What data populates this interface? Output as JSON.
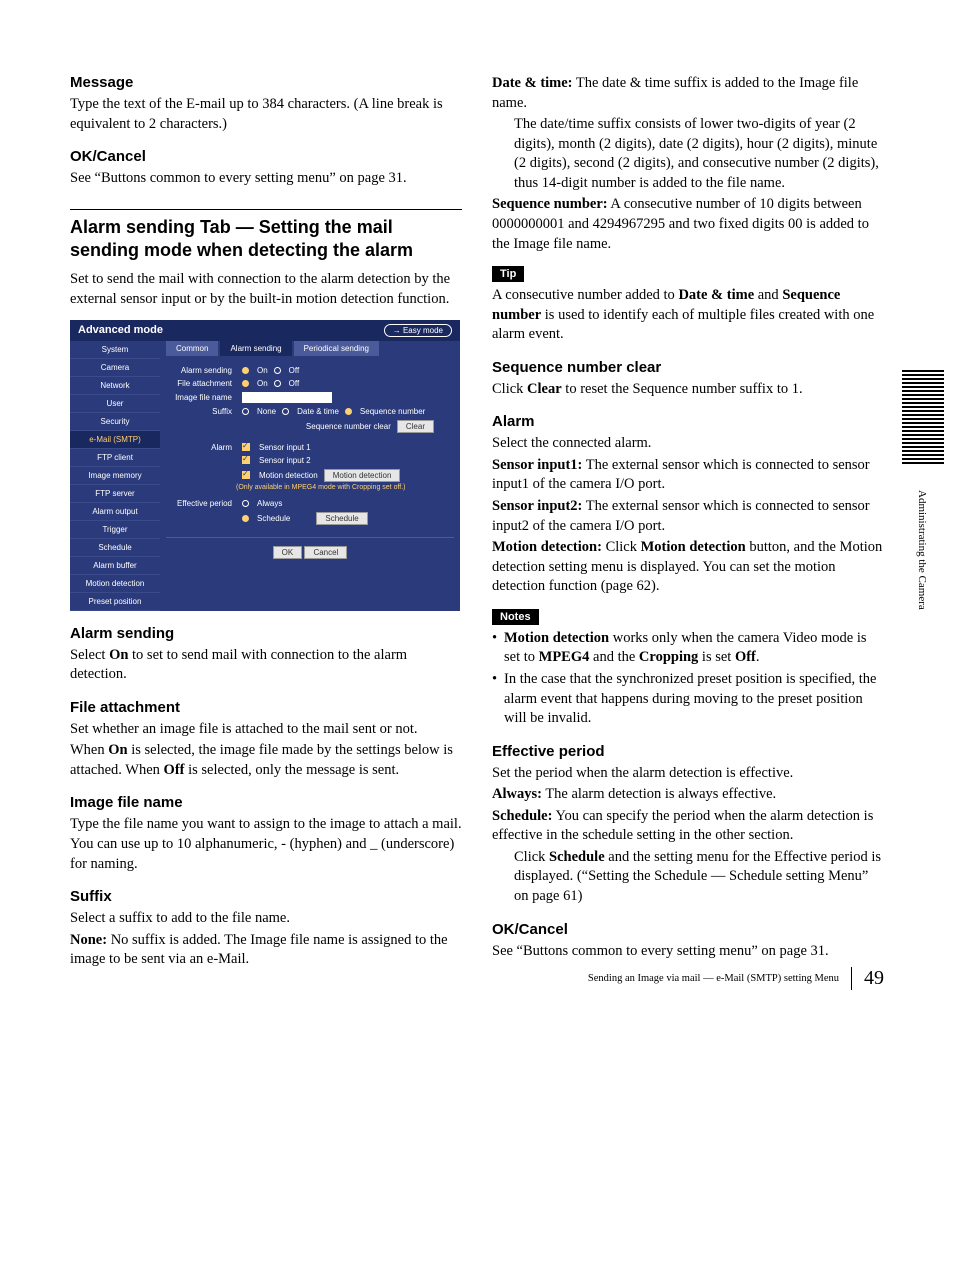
{
  "left": {
    "message": {
      "heading": "Message",
      "body": "Type the text of the E-mail up to 384 characters. (A line break is equivalent to 2 characters.)"
    },
    "okcancel1": {
      "heading": "OK/Cancel",
      "body": "See “Buttons common to every setting menu” on page 31."
    },
    "bigheading": "Alarm sending Tab — Setting the mail sending mode when detecting the alarm",
    "intro": "Set to send the mail with connection to the alarm detection by the external sensor input or by the built-in motion detection function.",
    "alarm_sending": {
      "heading": "Alarm sending",
      "p1a": "Select ",
      "p1b": "On",
      "p1c": " to set to send mail with connection to the alarm detection."
    },
    "file_attachment": {
      "heading": "File attachment",
      "p1": "Set whether an image file is attached to the mail sent or not.",
      "p2a": "When ",
      "p2b": "On",
      "p2c": " is selected, the image file made by the settings below is attached. When ",
      "p2d": "Off",
      "p2e": " is selected, only the message is sent."
    },
    "image_file_name": {
      "heading": "Image file name",
      "body": "Type the file name you want to assign to the image to attach a mail.  You can use up to 10 alphanumeric, - (hyphen) and _ (underscore) for naming."
    },
    "suffix": {
      "heading": "Suffix",
      "intro": "Select a suffix to add to the file name.",
      "none_term": "None:",
      "none_def": " No suffix is added.  The Image file name is assigned to the image to be sent via an e-Mail."
    }
  },
  "right": {
    "datetime_term": "Date & time:",
    "datetime_def": " The date & time suffix is added to the Image file name.",
    "datetime_more": "The date/time suffix consists of lower two-digits of year (2 digits), month (2 digits), date (2 digits), hour (2 digits), minute (2 digits), second (2 digits), and consecutive number (2 digits), thus 14-digit number is added to the file name.",
    "seq_term": "Sequence number:",
    "seq_def": " A consecutive number of 10 digits between 0000000001 and 4294967295 and two fixed digits 00 is added to the Image file name.",
    "tip_label": "Tip",
    "tip_a": "A consecutive number added to ",
    "tip_b": "Date & time",
    "tip_c": " and ",
    "tip_d": "Sequence number",
    "tip_e": " is used to identify each of multiple files created with one alarm event.",
    "seq_clear": {
      "heading": "Sequence number clear",
      "a": "Click ",
      "b": "Clear",
      "c": " to reset the Sequence number suffix to 1."
    },
    "alarm": {
      "heading": "Alarm",
      "intro": "Select the connected alarm.",
      "s1_term": "Sensor input1:",
      "s1_def": " The external sensor which is connected to sensor input1 of the camera I/O port.",
      "s2_term": "Sensor input2:",
      "s2_def": " The external sensor which is connected to sensor input2 of the camera I/O port.",
      "md_term": "Motion detection:",
      "md_a": " Click ",
      "md_b": "Motion detection",
      "md_c": " button, and the Motion detection setting menu is displayed. You can set the motion detection function (page 62)."
    },
    "notes_label": "Notes",
    "note1_a": "Motion detection",
    "note1_b": " works only when the camera Video mode is set to ",
    "note1_c": "MPEG4",
    "note1_d": " and the ",
    "note1_e": "Cropping",
    "note1_f": " is set ",
    "note1_g": "Off",
    "note1_h": ".",
    "note2": "In the case that the synchronized preset position is specified, the alarm event that happens during moving to the preset position will be invalid.",
    "effective": {
      "heading": "Effective period",
      "intro": "Set the period when the alarm detection is effective.",
      "always_term": "Always:",
      "always_def": " The alarm detection is always effective.",
      "sched_term": "Schedule:",
      "sched_def": " You can specify the period when the alarm detection is effective in the schedule setting in the other section.",
      "sched_more_a": "Click ",
      "sched_more_b": "Schedule",
      "sched_more_c": " and the setting menu for the Effective period is displayed. (“Setting the Schedule — Schedule setting Menu” on page 61)"
    },
    "okcancel2": {
      "heading": "OK/Cancel",
      "body": "See “Buttons common to every setting menu” on page 31."
    }
  },
  "ui": {
    "title": "Advanced mode",
    "easy": "→ Easy mode",
    "sidebar": [
      "System",
      "Camera",
      "Network",
      "User",
      "Security",
      "e-Mail (SMTP)",
      "FTP client",
      "Image memory",
      "FTP server",
      "Alarm output",
      "Trigger",
      "Schedule",
      "Alarm buffer",
      "Motion detection",
      "Preset position"
    ],
    "sidebar_active_index": 5,
    "tabs": [
      "Common",
      "Alarm sending",
      "Periodical sending"
    ],
    "tab_active_index": 1,
    "rows": {
      "alarm_sending": "Alarm sending",
      "on": "On",
      "off": "Off",
      "file_attachment": "File attachment",
      "image_file_name": "Image file name",
      "suffix": "Suffix",
      "none": "None",
      "date_time": "Date & time",
      "sequence_number": "Sequence number",
      "seq_clear": "Sequence number clear",
      "clear_btn": "Clear",
      "alarm": "Alarm",
      "sensor1": "Sensor input 1",
      "sensor2": "Sensor input 2",
      "motion_detection_cb": "Motion detection",
      "motion_btn": "Motion detection",
      "note": "(Only available in MPEG4 mode with Cropping set off.)",
      "effective_period": "Effective period",
      "always": "Always",
      "schedule": "Schedule",
      "schedule_btn": "Schedule",
      "ok_btn": "OK",
      "cancel_btn": "Cancel"
    }
  },
  "side_label": "Administrating the Camera",
  "footer": {
    "title": "Sending an Image via mail — e-Mail (SMTP) setting Menu",
    "page": "49"
  }
}
